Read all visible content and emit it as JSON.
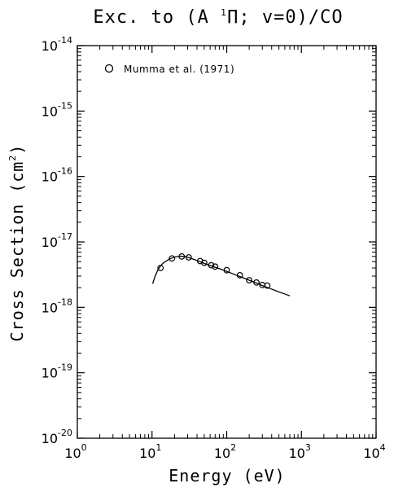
{
  "chart_data": {
    "type": "line",
    "title": {
      "prefix": "Exc. to (A ",
      "superscript": "1",
      "suffix": "Π; v=0)/CO"
    },
    "xlabel": "Energy (eV)",
    "ylabel": {
      "prefix": "Cross Section (cm",
      "superscript": "2",
      "suffix": ")"
    },
    "xscale": "log",
    "yscale": "log",
    "xlim": [
      1,
      10000
    ],
    "ylim": [
      1e-20,
      1e-14
    ],
    "x_ticks": [
      {
        "base": "10",
        "exp": "0",
        "value": 1
      },
      {
        "base": "10",
        "exp": "1",
        "value": 10
      },
      {
        "base": "10",
        "exp": "2",
        "value": 100
      },
      {
        "base": "10",
        "exp": "3",
        "value": 1000
      },
      {
        "base": "10",
        "exp": "4",
        "value": 10000
      }
    ],
    "y_ticks": [
      {
        "base": "10",
        "exp": "-20",
        "value": 1e-20
      },
      {
        "base": "10",
        "exp": "-19",
        "value": 1e-19
      },
      {
        "base": "10",
        "exp": "-18",
        "value": 1e-18
      },
      {
        "base": "10",
        "exp": "-17",
        "value": 1e-17
      },
      {
        "base": "10",
        "exp": "-16",
        "value": 1e-16
      },
      {
        "base": "10",
        "exp": "-15",
        "value": 1e-15
      },
      {
        "base": "10",
        "exp": "-14",
        "value": 1e-14
      }
    ],
    "legend": {
      "position": "top-left",
      "entries": [
        {
          "label": "Mumma et al. (1971)",
          "marker": "open-circle"
        }
      ]
    },
    "series": [
      {
        "name": "Mumma et al. (1971)",
        "style": "markers",
        "marker": "open-circle",
        "x": [
          13,
          18.5,
          25,
          31,
          44,
          50,
          62,
          70,
          100,
          150,
          200,
          250,
          300,
          350
        ],
        "y": [
          4e-18,
          5.6e-18,
          6e-18,
          5.8e-18,
          5.1e-18,
          4.8e-18,
          4.4e-18,
          4.2e-18,
          3.7e-18,
          3.1e-18,
          2.6e-18,
          2.4e-18,
          2.2e-18,
          2.15e-18
        ]
      },
      {
        "style": "line",
        "x": [
          10.2,
          11,
          12,
          13,
          14,
          15,
          17,
          19,
          21,
          24,
          27,
          30,
          35,
          40,
          50,
          60,
          70,
          80,
          100,
          130,
          170,
          200,
          250,
          300,
          400,
          500,
          600,
          700
        ],
        "y": [
          2.3e-18,
          3e-18,
          3.75e-18,
          4.3e-18,
          4.7e-18,
          5e-18,
          5.45e-18,
          5.75e-18,
          5.95e-18,
          6.05e-18,
          6e-18,
          5.85e-18,
          5.5e-18,
          5.2e-18,
          4.7e-18,
          4.35e-18,
          4.1e-18,
          3.9e-18,
          3.55e-18,
          3.15e-18,
          2.8e-18,
          2.6e-18,
          2.35e-18,
          2.15e-18,
          1.9e-18,
          1.72e-18,
          1.6e-18,
          1.5e-18
        ]
      }
    ],
    "grid": false
  }
}
